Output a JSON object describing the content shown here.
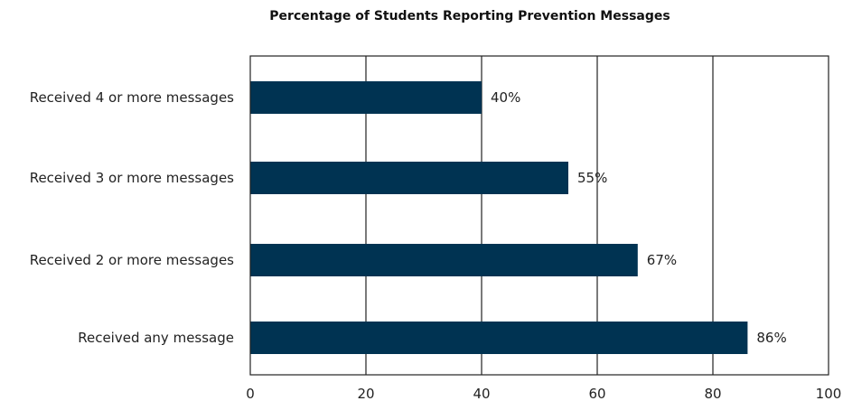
{
  "chart_data": {
    "type": "bar",
    "orientation": "horizontal",
    "title": "Percentage of Students Reporting Prevention Messages",
    "categories": [
      "Received 4 or more messages",
      "Received 3 or more messages",
      "Received 2 or more messages",
      "Received any message"
    ],
    "values": [
      40,
      55,
      67,
      86
    ],
    "data_labels": [
      "40%",
      "55%",
      "67%",
      "86%"
    ],
    "xlim": [
      0,
      100
    ],
    "x_ticks": [
      0,
      20,
      40,
      60,
      80,
      100
    ],
    "x_tick_labels": [
      "0",
      "20",
      "40",
      "60",
      "80",
      "100"
    ],
    "grid": "vertical",
    "legend": "none",
    "bar_color": "#003352"
  }
}
